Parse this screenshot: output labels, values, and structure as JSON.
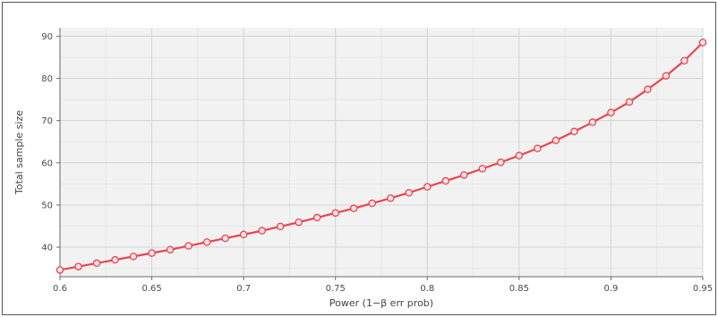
{
  "chart_data": {
    "type": "line",
    "title": "",
    "xlabel": "Power (1−β err prob)",
    "ylabel": "Total sample size",
    "xlim": [
      0.6,
      0.95
    ],
    "ylim": [
      33,
      92
    ],
    "x_ticks": [
      0.6,
      0.65,
      0.7,
      0.75,
      0.8,
      0.85,
      0.9,
      0.95
    ],
    "x_tick_labels": [
      "0.6",
      "0.65",
      "0.7",
      "0.75",
      "0.8",
      "0.85",
      "0.9",
      "0.95"
    ],
    "y_ticks": [
      40,
      50,
      60,
      70,
      80,
      90
    ],
    "y_tick_labels": [
      "40",
      "50",
      "60",
      "70",
      "80",
      "90"
    ],
    "grid": true,
    "legend": "none",
    "series": [
      {
        "color": "#e8454f",
        "marker": "open-circle",
        "x": [
          0.6,
          0.61,
          0.62,
          0.63,
          0.64,
          0.65,
          0.66,
          0.67,
          0.68,
          0.69,
          0.7,
          0.71,
          0.72,
          0.73,
          0.74,
          0.75,
          0.76,
          0.77,
          0.78,
          0.79,
          0.8,
          0.81,
          0.82,
          0.83,
          0.84,
          0.85,
          0.86,
          0.87,
          0.88,
          0.89,
          0.9,
          0.91,
          0.92,
          0.93,
          0.94,
          0.95
        ],
        "y": [
          34.6,
          35.4,
          36.2,
          37.0,
          37.8,
          38.6,
          39.4,
          40.3,
          41.2,
          42.1,
          43.0,
          43.9,
          44.9,
          45.9,
          47.0,
          48.1,
          49.2,
          50.4,
          51.6,
          52.9,
          54.3,
          55.7,
          57.1,
          58.6,
          60.1,
          61.7,
          63.4,
          65.3,
          67.4,
          69.6,
          71.9,
          74.4,
          77.4,
          80.6,
          84.2,
          88.5
        ]
      }
    ]
  },
  "colors": {
    "plot_background": "#f2f2f2",
    "grid": "#d4d4d4",
    "axis": "#6a6a6a",
    "line": "#e8454f"
  }
}
